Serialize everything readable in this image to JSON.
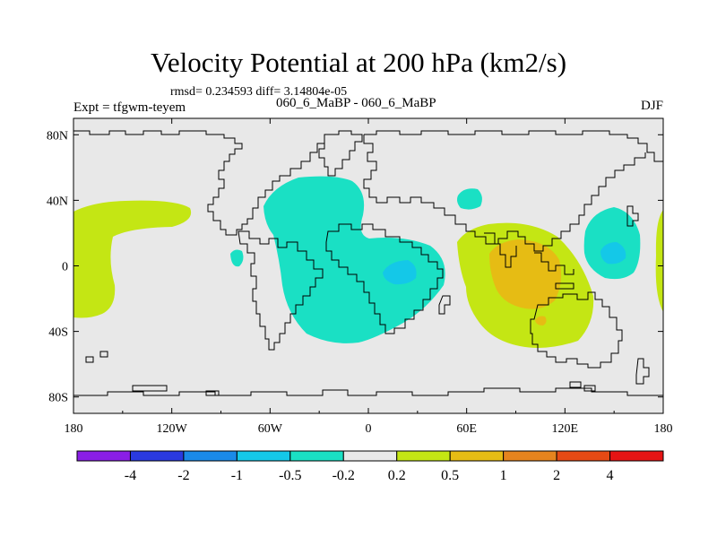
{
  "chart_data": {
    "type": "heatmap",
    "title": "Velocity Potential at 200 hPa (km2/s)",
    "stats": "rmsd= 0.234593 diff= 3.14804e-05",
    "left_label": "Expt = tfgwm-teyem",
    "center_label": "060_6_MaBP - 060_6_MaBP",
    "right_label": "DJF",
    "x_ticks": [
      "180",
      "120W",
      "60W",
      "0",
      "60E",
      "120E",
      "180"
    ],
    "y_ticks": [
      "80N",
      "40N",
      "0",
      "40S",
      "80S"
    ],
    "xlim": [
      -180,
      180
    ],
    "ylim": [
      -90,
      90
    ],
    "colorbar": {
      "labels": [
        "-4",
        "-2",
        "-1",
        "-0.5",
        "-0.2",
        "0.2",
        "0.5",
        "1",
        "2",
        "4"
      ],
      "colors": [
        "#8a1ee6",
        "#2a3ae0",
        "#1a8ae8",
        "#14c8e8",
        "#1ae0c4",
        "#e8e8e8",
        "#c4e614",
        "#e6bc14",
        "#e6841e",
        "#e64a14",
        "#e61414"
      ]
    },
    "regions": [
      {
        "name": "north-pacific-positive",
        "level": "0.2 to 0.5"
      },
      {
        "name": "south-pacific-positive",
        "level": "0.2 to 0.5"
      },
      {
        "name": "atlantic-negative",
        "level": "-0.5 to -0.2"
      },
      {
        "name": "africa-negative-core",
        "level": "-1 to -0.5"
      },
      {
        "name": "indian-ocean-positive",
        "level": "0.2 to 0.5"
      },
      {
        "name": "maritime-continent-positive-core",
        "level": "0.5 to 1"
      },
      {
        "name": "west-pacific-negative",
        "level": "-0.5 to -0.2"
      },
      {
        "name": "west-pacific-negative-core",
        "level": "-1 to -0.5"
      }
    ]
  }
}
